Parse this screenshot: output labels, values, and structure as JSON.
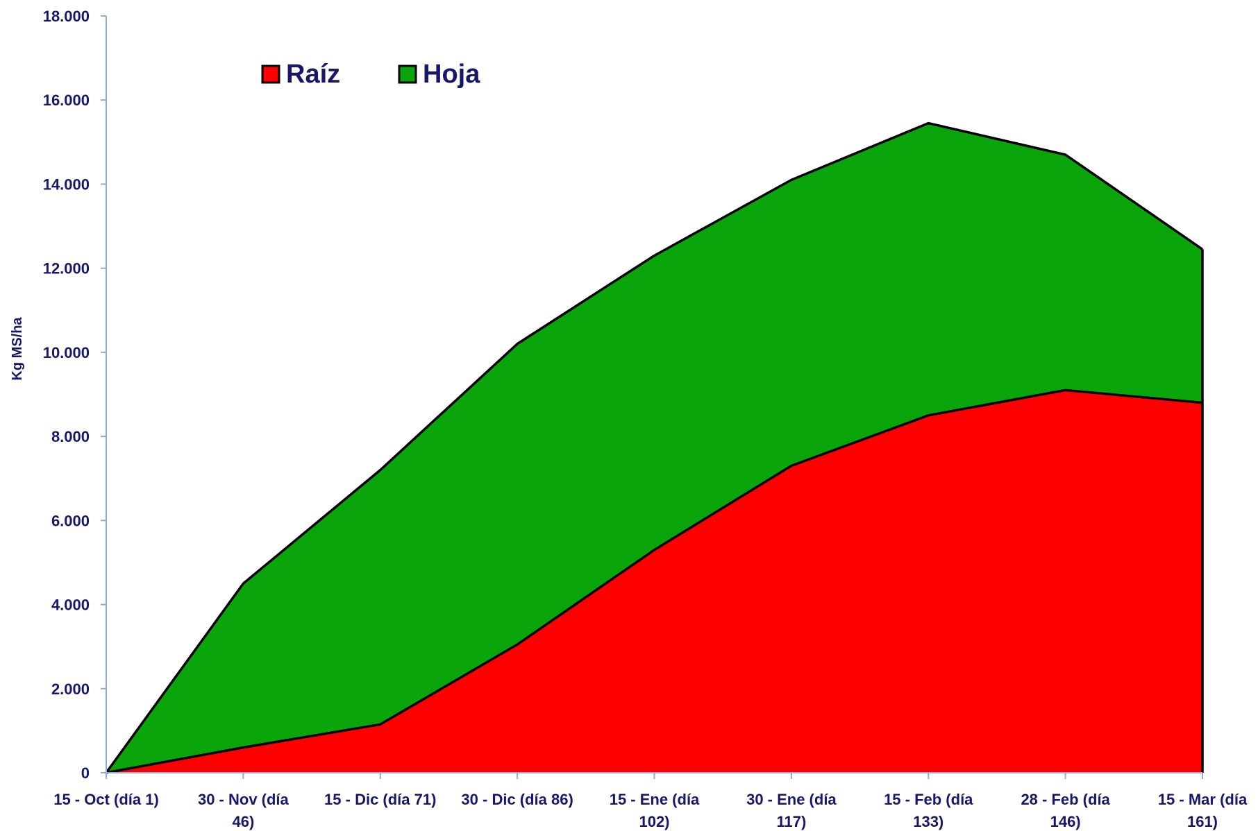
{
  "chart_data": {
    "type": "area",
    "stacked": true,
    "categories": [
      [
        "15 - Oct (día 1)"
      ],
      [
        "30 - Nov (día",
        "46)"
      ],
      [
        "15 - Dic (día 71)"
      ],
      [
        "30 - Dic (día 86)"
      ],
      [
        "15 - Ene (día",
        "102)"
      ],
      [
        "30 - Ene (día",
        "117)"
      ],
      [
        "15 - Feb (día",
        "133)"
      ],
      [
        "28 - Feb (día",
        "146)"
      ],
      [
        "15 - Mar (día",
        "161)"
      ]
    ],
    "series": [
      {
        "name": "Raíz",
        "color": "#ff0000",
        "values": [
          0,
          600,
          1150,
          3050,
          5300,
          7300,
          8500,
          9100,
          8800
        ]
      },
      {
        "name": "Hoja",
        "color": "#0aa50a",
        "values": [
          0,
          3900,
          6050,
          7150,
          7000,
          6800,
          6950,
          5600,
          3650
        ]
      }
    ],
    "ylabel": "Kg MS/ha",
    "xlabel": "",
    "title": "",
    "ylim": [
      0,
      18000
    ],
    "yticks": [
      0,
      2000,
      4000,
      6000,
      8000,
      10000,
      12000,
      14000,
      16000,
      18000
    ],
    "ytick_labels": [
      "0",
      "2.000",
      "4.000",
      "6.000",
      "8.000",
      "10.000",
      "12.000",
      "14.000",
      "16.000",
      "18.000"
    ],
    "grid": false,
    "legend_position": "top-left",
    "text_color": "#17176b",
    "axis_color": "#8faadc",
    "outline_color": "#000000"
  }
}
